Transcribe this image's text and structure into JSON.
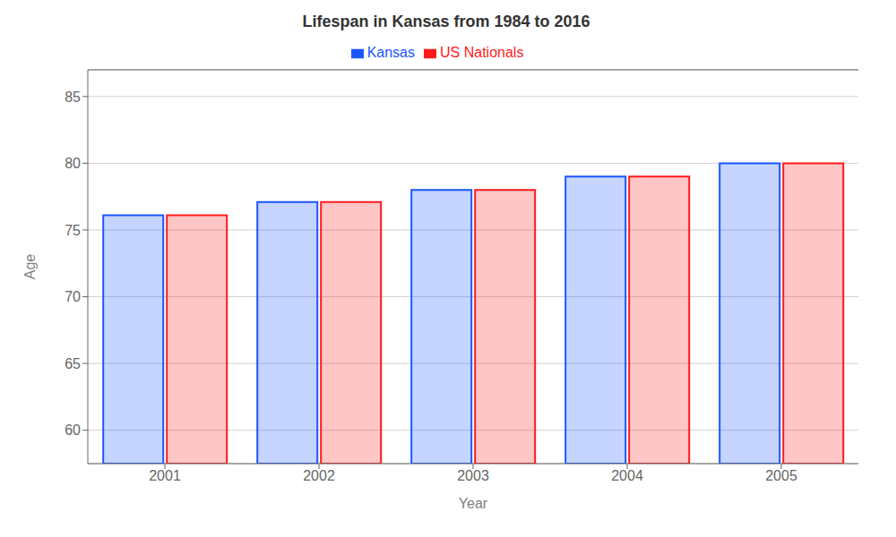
{
  "chart_data": {
    "type": "bar",
    "title": "Lifespan in Kansas from 1984 to 2016",
    "x_label": "Year",
    "y_label": "Age",
    "categories": [
      "2001",
      "2002",
      "2003",
      "2004",
      "2005"
    ],
    "series": [
      {
        "name": "Kansas",
        "color": "#1a56ff",
        "values": [
          76.1,
          77.1,
          78.0,
          79.0,
          80.0
        ]
      },
      {
        "name": "US Nationals",
        "color": "#ff1a1a",
        "values": [
          76.1,
          77.1,
          78.0,
          79.0,
          80.0
        ]
      }
    ],
    "ylim": [
      57.5,
      87
    ],
    "yticks": [
      60,
      65,
      70,
      75,
      80,
      85
    ],
    "grid": true,
    "legend": "top"
  }
}
